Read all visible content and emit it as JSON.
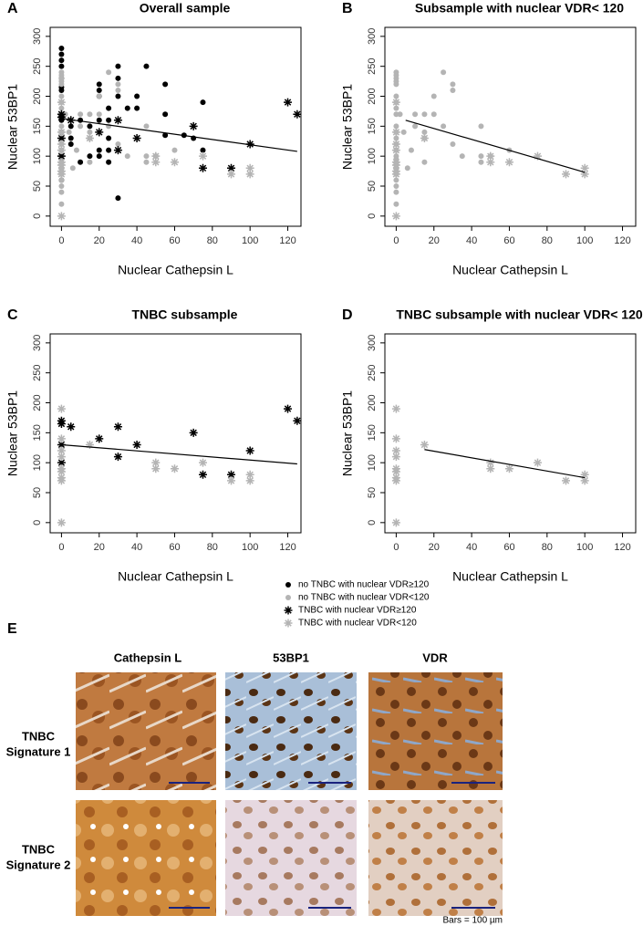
{
  "chart_data": [
    {
      "type": "scatter",
      "label": "A",
      "title": "Overall sample",
      "xlabel": "Nuclear Cathepsin L",
      "ylabel": "Nuclear 53BP1",
      "xlim": [
        -6,
        127
      ],
      "ylim": [
        -17,
        315
      ],
      "xticks": [
        0,
        20,
        40,
        60,
        80,
        100,
        120
      ],
      "yticks": [
        0,
        50,
        100,
        150,
        200,
        250,
        300
      ],
      "series": [
        {
          "marker": "dot",
          "color": "#000000",
          "x": [
            0,
            0,
            0,
            0,
            0,
            0,
            0,
            0,
            0,
            0,
            0,
            0,
            0,
            5,
            5,
            5,
            10,
            10,
            15,
            15,
            20,
            20,
            20,
            20,
            20,
            20,
            25,
            25,
            25,
            25,
            25,
            30,
            30,
            30,
            30,
            35,
            40,
            40,
            45,
            55,
            55,
            55,
            65,
            70,
            75,
            75
          ],
          "values": [
            280,
            270,
            260,
            250,
            230,
            215,
            210,
            170,
            165,
            160,
            140,
            100,
            60,
            130,
            120,
            150,
            160,
            90,
            100,
            150,
            220,
            210,
            200,
            160,
            110,
            100,
            180,
            160,
            130,
            110,
            90,
            250,
            230,
            200,
            30,
            180,
            200,
            180,
            250,
            220,
            170,
            135,
            135,
            130,
            190,
            110
          ]
        },
        {
          "marker": "dot",
          "color": "#b4b4b4",
          "x": [
            0,
            0,
            0,
            0,
            0,
            0,
            0,
            0,
            0,
            0,
            0,
            0,
            0,
            0,
            0,
            0,
            0,
            0,
            0,
            0,
            0,
            0,
            0,
            0,
            0,
            2,
            4,
            6,
            8,
            10,
            10,
            15,
            15,
            15,
            15,
            20,
            20,
            25,
            25,
            30,
            30,
            30,
            35,
            45,
            45,
            45,
            50,
            60
          ],
          "values": [
            240,
            235,
            230,
            225,
            220,
            200,
            190,
            180,
            170,
            150,
            140,
            130,
            120,
            110,
            100,
            95,
            90,
            85,
            80,
            75,
            70,
            60,
            50,
            40,
            20,
            170,
            140,
            80,
            110,
            170,
            150,
            170,
            140,
            90,
            130,
            200,
            170,
            240,
            150,
            220,
            210,
            120,
            100,
            150,
            100,
            90,
            100,
            110
          ]
        },
        {
          "marker": "star",
          "color": "#000000",
          "x": [
            0,
            0,
            0,
            0,
            5,
            20,
            30,
            30,
            40,
            70,
            75,
            90,
            100,
            120,
            125
          ],
          "values": [
            170,
            165,
            130,
            100,
            160,
            140,
            160,
            110,
            130,
            150,
            80,
            80,
            120,
            190,
            170
          ]
        },
        {
          "marker": "star",
          "color": "#b4b4b4",
          "x": [
            0,
            0,
            0,
            0,
            0,
            0,
            0,
            0,
            0,
            15,
            50,
            50,
            60,
            75,
            90,
            100,
            100
          ],
          "values": [
            190,
            140,
            120,
            110,
            90,
            85,
            75,
            70,
            0,
            130,
            100,
            90,
            90,
            100,
            70,
            80,
            70
          ]
        }
      ],
      "trend": {
        "x": [
          0,
          125
        ],
        "y": [
          163,
          108
        ]
      }
    },
    {
      "type": "scatter",
      "label": "B",
      "title": "Subsample with nuclear VDR< 120",
      "xlabel": "Nuclear Cathepsin L",
      "ylabel": "Nuclear 53BP1",
      "xlim": [
        -6,
        127
      ],
      "ylim": [
        -17,
        315
      ],
      "xticks": [
        0,
        20,
        40,
        60,
        80,
        100,
        120
      ],
      "yticks": [
        0,
        50,
        100,
        150,
        200,
        250,
        300
      ],
      "series": [
        {
          "marker": "dot",
          "color": "#b4b4b4",
          "x": [
            0,
            0,
            0,
            0,
            0,
            0,
            0,
            0,
            0,
            0,
            0,
            0,
            0,
            0,
            0,
            0,
            0,
            0,
            0,
            0,
            0,
            0,
            0,
            0,
            0,
            2,
            4,
            6,
            8,
            10,
            10,
            15,
            15,
            15,
            15,
            20,
            20,
            25,
            25,
            30,
            30,
            30,
            35,
            45,
            45,
            45,
            50,
            60
          ],
          "values": [
            240,
            235,
            230,
            225,
            220,
            200,
            190,
            180,
            170,
            150,
            140,
            130,
            120,
            110,
            100,
            95,
            90,
            85,
            80,
            75,
            70,
            60,
            50,
            40,
            20,
            170,
            140,
            80,
            110,
            170,
            150,
            170,
            140,
            90,
            130,
            200,
            170,
            240,
            150,
            220,
            210,
            120,
            100,
            150,
            100,
            90,
            100,
            110
          ]
        },
        {
          "marker": "star",
          "color": "#b4b4b4",
          "x": [
            0,
            0,
            0,
            0,
            0,
            0,
            0,
            0,
            0,
            15,
            50,
            50,
            60,
            75,
            90,
            100,
            100
          ],
          "values": [
            190,
            140,
            120,
            110,
            90,
            85,
            75,
            70,
            0,
            130,
            100,
            90,
            90,
            100,
            70,
            80,
            70
          ]
        }
      ],
      "trend": {
        "x": [
          5,
          100
        ],
        "y": [
          160,
          73
        ]
      }
    },
    {
      "type": "scatter",
      "label": "C",
      "title": "TNBC subsample",
      "xlabel": "Nuclear Cathepsin L",
      "ylabel": "Nuclear 53BP1",
      "xlim": [
        -6,
        127
      ],
      "ylim": [
        -17,
        315
      ],
      "xticks": [
        0,
        20,
        40,
        60,
        80,
        100,
        120
      ],
      "yticks": [
        0,
        50,
        100,
        150,
        200,
        250,
        300
      ],
      "series": [
        {
          "marker": "star",
          "color": "#000000",
          "x": [
            0,
            0,
            0,
            0,
            5,
            20,
            30,
            30,
            40,
            70,
            75,
            90,
            100,
            120,
            125
          ],
          "values": [
            170,
            165,
            130,
            100,
            160,
            140,
            160,
            110,
            130,
            150,
            80,
            80,
            120,
            190,
            170
          ]
        },
        {
          "marker": "star",
          "color": "#b4b4b4",
          "x": [
            0,
            0,
            0,
            0,
            0,
            0,
            0,
            0,
            0,
            15,
            50,
            50,
            60,
            75,
            90,
            100,
            100
          ],
          "values": [
            190,
            140,
            120,
            110,
            90,
            85,
            75,
            70,
            0,
            130,
            100,
            90,
            90,
            100,
            70,
            80,
            70
          ]
        }
      ],
      "trend": {
        "x": [
          0,
          125
        ],
        "y": [
          130,
          98
        ]
      }
    },
    {
      "type": "scatter",
      "label": "D",
      "title": "TNBC subsample with nuclear VDR< 120",
      "xlabel": "Nuclear Cathepsin L",
      "ylabel": "Nuclear 53BP1",
      "xlim": [
        -6,
        127
      ],
      "ylim": [
        -17,
        315
      ],
      "xticks": [
        0,
        20,
        40,
        60,
        80,
        100,
        120
      ],
      "yticks": [
        0,
        50,
        100,
        150,
        200,
        250,
        300
      ],
      "series": [
        {
          "marker": "star",
          "color": "#b4b4b4",
          "x": [
            0,
            0,
            0,
            0,
            0,
            0,
            0,
            0,
            0,
            15,
            50,
            50,
            60,
            75,
            90,
            100,
            100
          ],
          "values": [
            190,
            140,
            120,
            110,
            90,
            85,
            75,
            70,
            0,
            130,
            100,
            90,
            90,
            100,
            70,
            80,
            70
          ]
        }
      ],
      "trend": {
        "x": [
          15,
          100
        ],
        "y": [
          122,
          75
        ]
      }
    }
  ],
  "legend": [
    {
      "name": "no TNBC with nuclear VDR≥120",
      "marker": "dot",
      "color": "#000000"
    },
    {
      "name": "no TNBC with nuclear VDR<120",
      "marker": "dot",
      "color": "#b4b4b4"
    },
    {
      "name": "TNBC with nuclear VDR≥120",
      "marker": "star",
      "color": "#000000"
    },
    {
      "name": "TNBC with nuclear VDR<120",
      "marker": "star",
      "color": "#b4b4b4"
    }
  ],
  "panel_e": {
    "label": "E",
    "columns": [
      "Cathepsin L",
      "53BP1",
      "VDR"
    ],
    "rows": [
      [
        "TNBC",
        "Signature 1"
      ],
      [
        "TNBC",
        "Signature 2"
      ]
    ],
    "scale_note": "Bars = 100 µm"
  }
}
